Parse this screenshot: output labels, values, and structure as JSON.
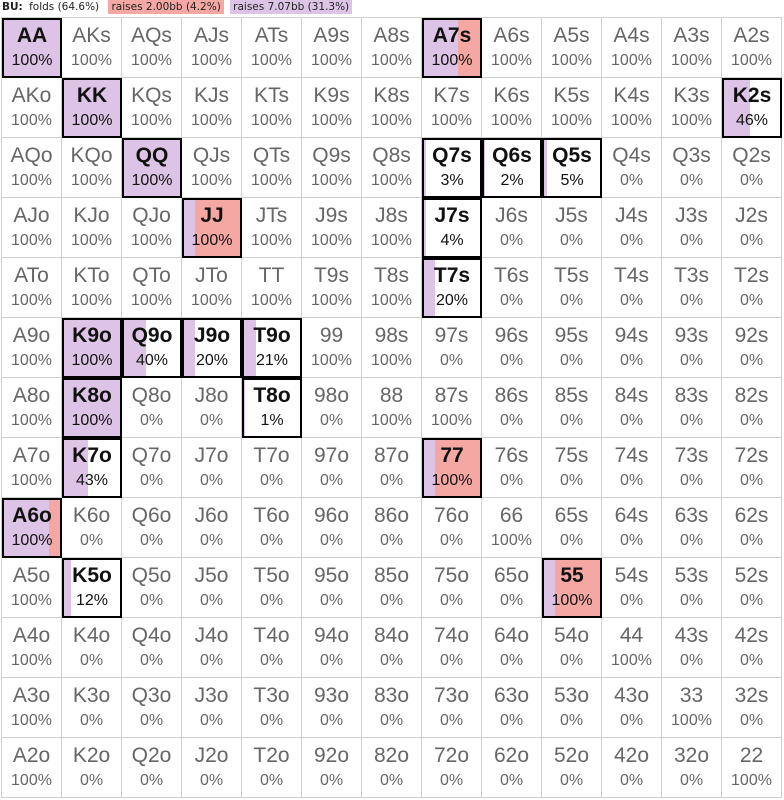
{
  "legend": {
    "position": "BU:",
    "items": [
      {
        "label": "folds (64.6%)",
        "color": "#ffffff"
      },
      {
        "label": "raises 2.00bb (4.2%)",
        "color": "#f4a7a3"
      },
      {
        "label": "raises 7.07bb (31.3%)",
        "color": "#ddc4e6"
      }
    ]
  },
  "colors": {
    "fold": "#ffffff",
    "raise_small": "#f4a7a3",
    "raise_big": "#ddc4e6"
  },
  "grid": [
    [
      [
        "AA",
        "100%",
        0,
        1
      ],
      [
        "AKs",
        "100%",
        0,
        0
      ],
      [
        "AQs",
        "100%",
        0,
        0
      ],
      [
        "AJs",
        "100%",
        0,
        0
      ],
      [
        "ATs",
        "100%",
        0,
        0
      ],
      [
        "A9s",
        "100%",
        0,
        0
      ],
      [
        "A8s",
        "100%",
        0,
        0
      ],
      [
        "A7s",
        "100%",
        0.4,
        0.6
      ],
      [
        "A6s",
        "100%",
        0,
        0
      ],
      [
        "A5s",
        "100%",
        0,
        0
      ],
      [
        "A4s",
        "100%",
        0,
        0
      ],
      [
        "A3s",
        "100%",
        0,
        0
      ],
      [
        "A2s",
        "100%",
        0,
        0
      ]
    ],
    [
      [
        "AKo",
        "100%",
        0,
        0
      ],
      [
        "KK",
        "100%",
        0,
        1
      ],
      [
        "KQs",
        "100%",
        0,
        0
      ],
      [
        "KJs",
        "100%",
        0,
        0
      ],
      [
        "KTs",
        "100%",
        0,
        0
      ],
      [
        "K9s",
        "100%",
        0,
        0
      ],
      [
        "K8s",
        "100%",
        0,
        0
      ],
      [
        "K7s",
        "100%",
        0,
        0
      ],
      [
        "K6s",
        "100%",
        0,
        0
      ],
      [
        "K5s",
        "100%",
        0,
        0
      ],
      [
        "K4s",
        "100%",
        0,
        0
      ],
      [
        "K3s",
        "100%",
        0,
        0
      ],
      [
        "K2s",
        "46%",
        0,
        0.46
      ]
    ],
    [
      [
        "AQo",
        "100%",
        0,
        0
      ],
      [
        "KQo",
        "100%",
        0,
        0
      ],
      [
        "QQ",
        "100%",
        0,
        1
      ],
      [
        "QJs",
        "100%",
        0,
        0
      ],
      [
        "QTs",
        "100%",
        0,
        0
      ],
      [
        "Q9s",
        "100%",
        0,
        0
      ],
      [
        "Q8s",
        "100%",
        0,
        0
      ],
      [
        "Q7s",
        "3%",
        0,
        0.03
      ],
      [
        "Q6s",
        "2%",
        0,
        0.02
      ],
      [
        "Q5s",
        "5%",
        0,
        0.05
      ],
      [
        "Q4s",
        "0%",
        0,
        0
      ],
      [
        "Q3s",
        "0%",
        0,
        0
      ],
      [
        "Q2s",
        "0%",
        0,
        0
      ]
    ],
    [
      [
        "AJo",
        "100%",
        0,
        0
      ],
      [
        "KJo",
        "100%",
        0,
        0
      ],
      [
        "QJo",
        "100%",
        0,
        0
      ],
      [
        "JJ",
        "100%",
        0.8,
        0.2
      ],
      [
        "JTs",
        "100%",
        0,
        0
      ],
      [
        "J9s",
        "100%",
        0,
        0
      ],
      [
        "J8s",
        "100%",
        0,
        0
      ],
      [
        "J7s",
        "4%",
        0,
        0.04
      ],
      [
        "J6s",
        "0%",
        0,
        0
      ],
      [
        "J5s",
        "0%",
        0,
        0
      ],
      [
        "J4s",
        "0%",
        0,
        0
      ],
      [
        "J3s",
        "0%",
        0,
        0
      ],
      [
        "J2s",
        "0%",
        0,
        0
      ]
    ],
    [
      [
        "ATo",
        "100%",
        0,
        0
      ],
      [
        "KTo",
        "100%",
        0,
        0
      ],
      [
        "QTo",
        "100%",
        0,
        0
      ],
      [
        "JTo",
        "100%",
        0,
        0
      ],
      [
        "TT",
        "100%",
        0,
        0
      ],
      [
        "T9s",
        "100%",
        0,
        0
      ],
      [
        "T8s",
        "100%",
        0,
        0
      ],
      [
        "T7s",
        "20%",
        0,
        0.2
      ],
      [
        "T6s",
        "0%",
        0,
        0
      ],
      [
        "T5s",
        "0%",
        0,
        0
      ],
      [
        "T4s",
        "0%",
        0,
        0
      ],
      [
        "T3s",
        "0%",
        0,
        0
      ],
      [
        "T2s",
        "0%",
        0,
        0
      ]
    ],
    [
      [
        "A9o",
        "100%",
        0,
        0
      ],
      [
        "K9o",
        "100%",
        0,
        1
      ],
      [
        "Q9o",
        "40%",
        0,
        0.4
      ],
      [
        "J9o",
        "20%",
        0,
        0.2
      ],
      [
        "T9o",
        "21%",
        0,
        0.21
      ],
      [
        "99",
        "100%",
        0,
        0
      ],
      [
        "98s",
        "100%",
        0,
        0
      ],
      [
        "97s",
        "0%",
        0,
        0
      ],
      [
        "96s",
        "0%",
        0,
        0
      ],
      [
        "95s",
        "0%",
        0,
        0
      ],
      [
        "94s",
        "0%",
        0,
        0
      ],
      [
        "93s",
        "0%",
        0,
        0
      ],
      [
        "92s",
        "0%",
        0,
        0
      ]
    ],
    [
      [
        "A8o",
        "100%",
        0,
        0
      ],
      [
        "K8o",
        "100%",
        0,
        1
      ],
      [
        "Q8o",
        "0%",
        0,
        0
      ],
      [
        "J8o",
        "0%",
        0,
        0
      ],
      [
        "T8o",
        "1%",
        0,
        0.01
      ],
      [
        "98o",
        "0%",
        0,
        0
      ],
      [
        "88",
        "100%",
        0,
        0
      ],
      [
        "87s",
        "100%",
        0,
        0
      ],
      [
        "86s",
        "0%",
        0,
        0
      ],
      [
        "85s",
        "0%",
        0,
        0
      ],
      [
        "84s",
        "0%",
        0,
        0
      ],
      [
        "83s",
        "0%",
        0,
        0
      ],
      [
        "82s",
        "0%",
        0,
        0
      ]
    ],
    [
      [
        "A7o",
        "100%",
        0,
        0
      ],
      [
        "K7o",
        "43%",
        0,
        0.43
      ],
      [
        "Q7o",
        "0%",
        0,
        0
      ],
      [
        "J7o",
        "0%",
        0,
        0
      ],
      [
        "T7o",
        "0%",
        0,
        0
      ],
      [
        "97o",
        "0%",
        0,
        0
      ],
      [
        "87o",
        "0%",
        0,
        0
      ],
      [
        "77",
        "100%",
        0.8,
        0.2
      ],
      [
        "76s",
        "0%",
        0,
        0
      ],
      [
        "75s",
        "0%",
        0,
        0
      ],
      [
        "74s",
        "0%",
        0,
        0
      ],
      [
        "73s",
        "0%",
        0,
        0
      ],
      [
        "72s",
        "0%",
        0,
        0
      ]
    ],
    [
      [
        "A6o",
        "100%",
        0.2,
        0.8
      ],
      [
        "K6o",
        "0%",
        0,
        0
      ],
      [
        "Q6o",
        "0%",
        0,
        0
      ],
      [
        "J6o",
        "0%",
        0,
        0
      ],
      [
        "T6o",
        "0%",
        0,
        0
      ],
      [
        "96o",
        "0%",
        0,
        0
      ],
      [
        "86o",
        "0%",
        0,
        0
      ],
      [
        "76o",
        "0%",
        0,
        0
      ],
      [
        "66",
        "100%",
        0,
        0
      ],
      [
        "65s",
        "0%",
        0,
        0
      ],
      [
        "64s",
        "0%",
        0,
        0
      ],
      [
        "63s",
        "0%",
        0,
        0
      ],
      [
        "62s",
        "0%",
        0,
        0
      ]
    ],
    [
      [
        "A5o",
        "100%",
        0,
        0
      ],
      [
        "K5o",
        "12%",
        0,
        0.12
      ],
      [
        "Q5o",
        "0%",
        0,
        0
      ],
      [
        "J5o",
        "0%",
        0,
        0
      ],
      [
        "T5o",
        "0%",
        0,
        0
      ],
      [
        "95o",
        "0%",
        0,
        0
      ],
      [
        "85o",
        "0%",
        0,
        0
      ],
      [
        "75o",
        "0%",
        0,
        0
      ],
      [
        "65o",
        "0%",
        0,
        0
      ],
      [
        "55",
        "100%",
        0.8,
        0.2
      ],
      [
        "54s",
        "0%",
        0,
        0
      ],
      [
        "53s",
        "0%",
        0,
        0
      ],
      [
        "52s",
        "0%",
        0,
        0
      ]
    ],
    [
      [
        "A4o",
        "100%",
        0,
        0
      ],
      [
        "K4o",
        "0%",
        0,
        0
      ],
      [
        "Q4o",
        "0%",
        0,
        0
      ],
      [
        "J4o",
        "0%",
        0,
        0
      ],
      [
        "T4o",
        "0%",
        0,
        0
      ],
      [
        "94o",
        "0%",
        0,
        0
      ],
      [
        "84o",
        "0%",
        0,
        0
      ],
      [
        "74o",
        "0%",
        0,
        0
      ],
      [
        "64o",
        "0%",
        0,
        0
      ],
      [
        "54o",
        "0%",
        0,
        0
      ],
      [
        "44",
        "100%",
        0,
        0
      ],
      [
        "43s",
        "0%",
        0,
        0
      ],
      [
        "42s",
        "0%",
        0,
        0
      ]
    ],
    [
      [
        "A3o",
        "100%",
        0,
        0
      ],
      [
        "K3o",
        "0%",
        0,
        0
      ],
      [
        "Q3o",
        "0%",
        0,
        0
      ],
      [
        "J3o",
        "0%",
        0,
        0
      ],
      [
        "T3o",
        "0%",
        0,
        0
      ],
      [
        "93o",
        "0%",
        0,
        0
      ],
      [
        "83o",
        "0%",
        0,
        0
      ],
      [
        "73o",
        "0%",
        0,
        0
      ],
      [
        "63o",
        "0%",
        0,
        0
      ],
      [
        "53o",
        "0%",
        0,
        0
      ],
      [
        "43o",
        "0%",
        0,
        0
      ],
      [
        "33",
        "100%",
        0,
        0
      ],
      [
        "32s",
        "0%",
        0,
        0
      ]
    ],
    [
      [
        "A2o",
        "100%",
        0,
        0
      ],
      [
        "K2o",
        "0%",
        0,
        0
      ],
      [
        "Q2o",
        "0%",
        0,
        0
      ],
      [
        "J2o",
        "0%",
        0,
        0
      ],
      [
        "T2o",
        "0%",
        0,
        0
      ],
      [
        "92o",
        "0%",
        0,
        0
      ],
      [
        "82o",
        "0%",
        0,
        0
      ],
      [
        "72o",
        "0%",
        0,
        0
      ],
      [
        "62o",
        "0%",
        0,
        0
      ],
      [
        "52o",
        "0%",
        0,
        0
      ],
      [
        "42o",
        "0%",
        0,
        0
      ],
      [
        "32o",
        "0%",
        0,
        0
      ],
      [
        "22",
        "100%",
        0,
        0
      ]
    ]
  ]
}
